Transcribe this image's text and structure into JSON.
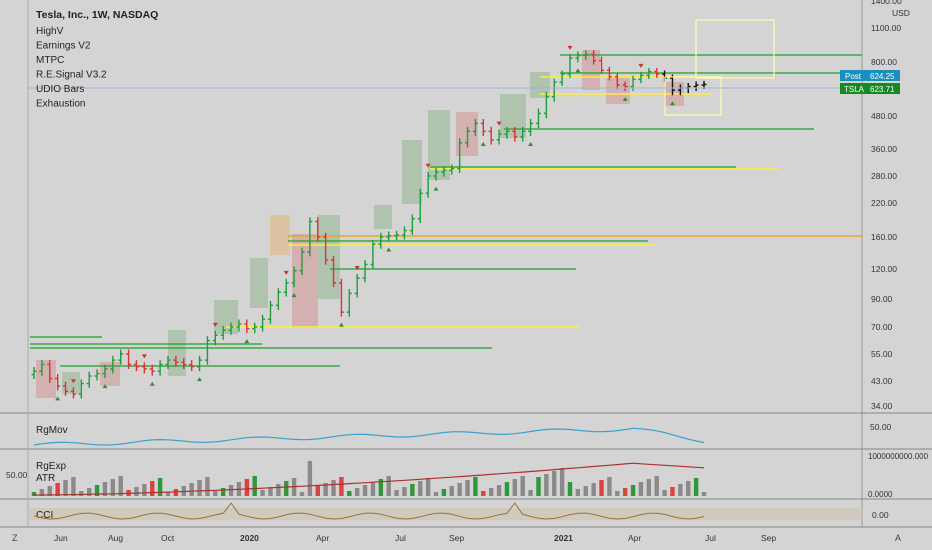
{
  "header": {
    "symbol_title": "Tesla, Inc., 1W, NASDAQ",
    "indicators": [
      "HighV",
      "Earnings V2",
      "MTPC",
      "R.E.Signal V3.2",
      "UDIO Bars",
      "Exhaustion"
    ]
  },
  "price_axis": {
    "currency": "USD",
    "ticks": [
      "1400.00",
      "1100.00",
      "800.00",
      "600.00",
      "480.00",
      "360.00",
      "280.00",
      "220.00",
      "160.00",
      "120.00",
      "90.00",
      "70.00",
      "55.00",
      "43.00",
      "34.00"
    ],
    "post_label": "Post",
    "post_value": "624.25",
    "last_label": "TSLA",
    "last_value": "623.71"
  },
  "time_axis": {
    "ticks": [
      "Jun",
      "Aug",
      "Oct",
      "2020",
      "Apr",
      "Jul",
      "Sep",
      "2021",
      "Apr",
      "Jul",
      "Sep"
    ],
    "left_button": "Z",
    "right_button": "A"
  },
  "panes": {
    "rgmov": {
      "label": "RgMov",
      "tick": "50.00"
    },
    "rgexp": {
      "label": "RgExp",
      "label2": "ATR",
      "left_tick": "50.00",
      "ticks": [
        "1000000000.000",
        "0.0000"
      ]
    },
    "cci": {
      "label": "CCI",
      "tick": "0.00"
    }
  },
  "colors": {
    "up": "#1e9e3a",
    "down": "#e03030",
    "neutral": "#111111",
    "support": "#3aa845",
    "yellow": "#ffee33",
    "orange": "#f0a030",
    "post_badge": "#1b8fbf",
    "last_badge": "#178a1f"
  },
  "chart_data": {
    "type": "candlestick",
    "log_scale": true,
    "ylim": [
      32,
      1450
    ],
    "series_name": "TSLA",
    "weekly_close_approx": [
      47,
      50,
      44,
      41,
      39,
      38,
      42,
      45,
      46,
      48,
      52,
      55,
      50,
      49,
      48,
      47,
      50,
      52,
      51,
      50,
      49,
      52,
      62,
      65,
      68,
      70,
      72,
      69,
      70,
      75,
      85,
      96,
      105,
      118,
      140,
      185,
      160,
      130,
      105,
      80,
      95,
      110,
      125,
      150,
      160,
      162,
      163,
      170,
      190,
      240,
      280,
      290,
      295,
      300,
      380,
      420,
      450,
      420,
      390,
      410,
      420,
      400,
      420,
      450,
      490,
      560,
      640,
      700,
      830,
      850,
      860,
      810,
      730,
      680,
      620,
      610,
      660,
      690,
      720,
      700,
      670,
      590,
      600,
      610,
      620,
      624
    ]
  }
}
